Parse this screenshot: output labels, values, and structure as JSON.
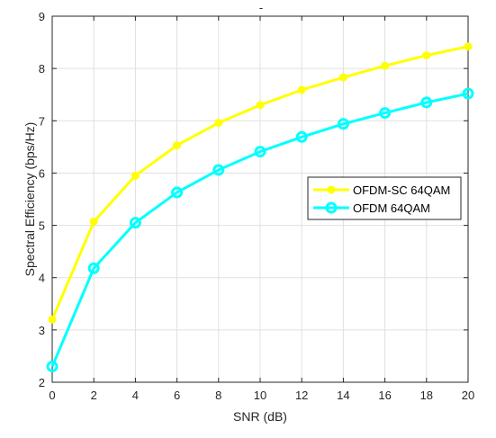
{
  "chart_data": {
    "type": "line",
    "title": "",
    "title_mark": "-",
    "xlabel": "SNR (dB)",
    "ylabel": "Spectral Efficiency (bps/Hz)",
    "xlim": [
      0,
      20
    ],
    "ylim": [
      2,
      9
    ],
    "x_ticks": [
      "0",
      "2",
      "4",
      "6",
      "8",
      "10",
      "12",
      "14",
      "16",
      "18",
      "20"
    ],
    "y_ticks": [
      "2",
      "3",
      "4",
      "5",
      "6",
      "7",
      "8",
      "9"
    ],
    "grid": true,
    "legend_position": "right",
    "x": [
      0,
      2,
      4,
      6,
      8,
      10,
      12,
      14,
      16,
      18,
      20
    ],
    "series": [
      {
        "name": "OFDM-SC 64QAM",
        "color": "#ffff00",
        "marker": "filled-circle",
        "values": [
          3.2,
          5.07,
          5.95,
          6.53,
          6.96,
          7.3,
          7.59,
          7.83,
          8.05,
          8.25,
          8.42
        ]
      },
      {
        "name": "OFDM 64QAM",
        "color": "#00ffff",
        "marker": "open-circle",
        "values": [
          2.3,
          4.18,
          5.05,
          5.63,
          6.06,
          6.41,
          6.69,
          6.94,
          7.15,
          7.35,
          7.52
        ]
      }
    ]
  }
}
